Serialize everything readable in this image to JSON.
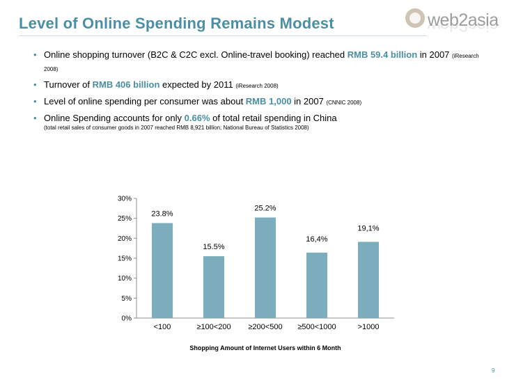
{
  "slide": {
    "title": "Level of Online Spending Remains Modest",
    "page_number": "9"
  },
  "logo": {
    "text": "web2asia"
  },
  "bullets": [
    {
      "pre": "Online shopping turnover (B2C & C2C excl. Online-travel booking) reached ",
      "highlight": "RMB 59.4 billion",
      "post": " in 2007",
      "source": "(iResearch 2008)"
    },
    {
      "pre": "Turnover of ",
      "highlight": "RMB 406 billion",
      "post": " expected by 2011",
      "source": "(iResearch 2008)"
    },
    {
      "pre": "Level of online spending per consumer was about ",
      "highlight": "RMB 1,000",
      "post": " in 2007",
      "source": "(CNNIC 2008)"
    },
    {
      "pre": "Online Spending accounts for only ",
      "highlight": "0.66%",
      "post": " of total retail spending in China",
      "note": "(total retail sales of consumer goods in 2007 reached RMB 8,921 billion; National Bureau of Statistics 2008)"
    }
  ],
  "colors": {
    "accent": "#4a8fa3",
    "bar": "#7badbd",
    "axis": "#8c8c8c"
  },
  "chart_data": {
    "type": "bar",
    "categories": [
      "<100",
      "≥100<200",
      "≥200<500",
      "≥500<1000",
      ">1000"
    ],
    "values": [
      23.8,
      15.5,
      25.2,
      16.4,
      19.1
    ],
    "data_labels": [
      "23.8%",
      "15.5%",
      "25.2%",
      "16,4%",
      "19,1%"
    ],
    "ylim": [
      0,
      30
    ],
    "yticks": [
      "0%",
      "5%",
      "10%",
      "15%",
      "20%",
      "25%",
      "30%"
    ],
    "xlabel": "Shopping Amount of Internet Users within 6 Month",
    "ylabel": "",
    "grid": false,
    "legend": "none"
  }
}
